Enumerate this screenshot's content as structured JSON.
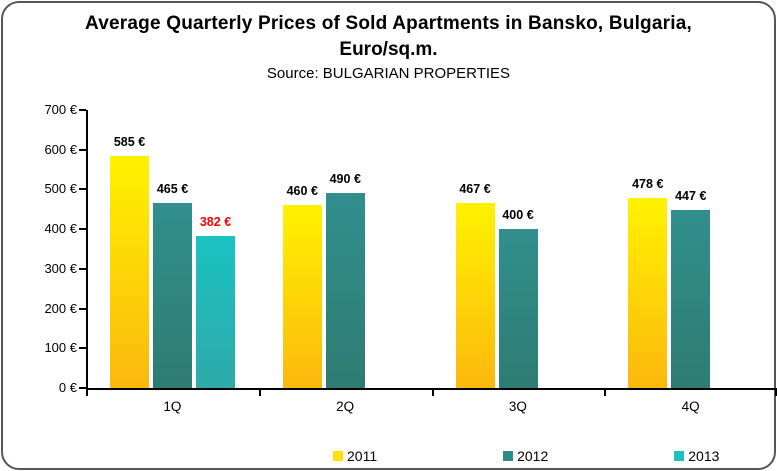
{
  "chart_data": {
    "type": "bar",
    "title_line1": "Average Quarterly Prices of Sold Apartments in Bansko, Bulgaria,",
    "title_line2": "Euro/sq.m.",
    "subtitle": "Source: BULGARIAN PROPERTIES",
    "categories": [
      "1Q",
      "2Q",
      "3Q",
      "4Q"
    ],
    "series": [
      {
        "name": "2011",
        "values": [
          585,
          460,
          467,
          478
        ],
        "color_top": "#FFF200",
        "color_bottom": "#FBB80D",
        "legend_color": "#FFDF00",
        "label_color": "#000000"
      },
      {
        "name": "2012",
        "values": [
          465,
          490,
          400,
          447
        ],
        "color_top": "#318F8D",
        "color_bottom": "#2E7C73",
        "legend_color": "#2E8B8A",
        "label_color": "#000000"
      },
      {
        "name": "2013",
        "values": [
          382,
          null,
          null,
          null
        ],
        "color_top": "#1AC2C2",
        "color_bottom": "#2FA9A9",
        "legend_color": "#1FBFBF",
        "label_color": "#FF0000"
      }
    ],
    "ylim": [
      0,
      700
    ],
    "ytick_step": 100,
    "ytick_suffix": " €",
    "value_suffix": " €",
    "grid": false,
    "legend_position": "bottom",
    "axis_color": "#000000",
    "border_color": "#55565A"
  }
}
